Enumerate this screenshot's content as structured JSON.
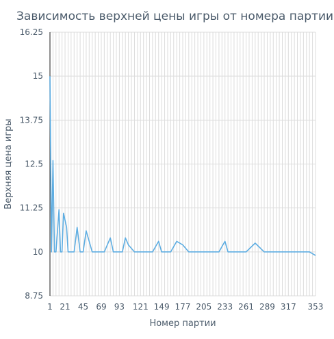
{
  "chart_data": {
    "type": "line",
    "title": "Зависимость верхней цены игры от номера партии",
    "xlabel": "Номер партии",
    "ylabel": "Верхняя цена игры",
    "xlim": [
      1,
      353
    ],
    "ylim": [
      8.75,
      16.25
    ],
    "grid": true,
    "x_grid_step": 4,
    "x_tick_values": [
      1,
      21,
      45,
      69,
      93,
      121,
      149,
      177,
      205,
      233,
      261,
      289,
      317,
      353
    ],
    "x_tick_labels": [
      "1",
      "21",
      "45",
      "69",
      "93",
      "121",
      "149",
      "177",
      "205",
      "233",
      "261",
      "289",
      "317",
      "353"
    ],
    "y_tick_values": [
      8.75,
      10,
      11.25,
      12.5,
      13.75,
      15,
      16.25
    ],
    "y_tick_labels": [
      "8.75",
      "10",
      "11.25",
      "12.5",
      "13.75",
      "15",
      "16.25"
    ],
    "line_color": "#5dade2",
    "series": [
      {
        "x": [
          1,
          3,
          5,
          7,
          9,
          13,
          15,
          17,
          19,
          23,
          25,
          29,
          33,
          37,
          41,
          45,
          49,
          53,
          57,
          61,
          65,
          73,
          81,
          85,
          89,
          97,
          101,
          105,
          113,
          121,
          129,
          137,
          145,
          149,
          153,
          161,
          169,
          177,
          185,
          193,
          201,
          209,
          217,
          225,
          233,
          237,
          245,
          253,
          261,
          273,
          285,
          289,
          297,
          305,
          313,
          321,
          329,
          337,
          345,
          349,
          353
        ],
        "y": [
          15.0,
          10.0,
          12.6,
          10.0,
          10.0,
          11.2,
          10.0,
          10.0,
          11.1,
          10.7,
          10.0,
          10.0,
          10.0,
          10.7,
          10.0,
          10.0,
          10.6,
          10.3,
          10.0,
          10.0,
          10.0,
          10.0,
          10.4,
          10.0,
          10.0,
          10.0,
          10.4,
          10.2,
          10.0,
          10.0,
          10.0,
          10.0,
          10.3,
          10.0,
          10.0,
          10.0,
          10.3,
          10.2,
          10.0,
          10.0,
          10.0,
          10.0,
          10.0,
          10.0,
          10.3,
          10.0,
          10.0,
          10.0,
          10.0,
          10.25,
          10.0,
          10.0,
          10.0,
          10.0,
          10.0,
          10.0,
          10.0,
          10.0,
          10.0,
          9.95,
          9.9
        ]
      }
    ]
  }
}
